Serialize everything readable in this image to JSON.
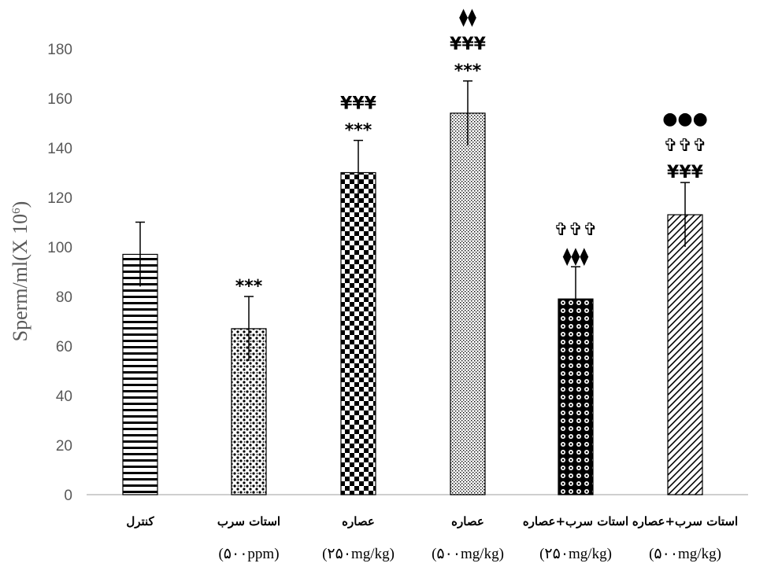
{
  "chart_data": {
    "type": "bar",
    "ylabel": "Sperm/ml(X 10",
    "ylabel_superscript": "6",
    "ylabel_close": ")",
    "ylim": [
      0,
      180
    ],
    "yticks": [
      0,
      20,
      40,
      60,
      80,
      100,
      120,
      140,
      160,
      180
    ],
    "grid": false,
    "legend": "none",
    "categories": [
      {
        "line1": "کنترل",
        "line2": ""
      },
      {
        "line1": "استات سرب",
        "line2": "(۵۰۰ppm)"
      },
      {
        "line1": "عصاره",
        "line2": "(۲۵۰mg/kg)"
      },
      {
        "line1": "عصاره",
        "line2": "(۵۰۰mg/kg)"
      },
      {
        "line1": "استات سرب+عصاره",
        "line2": "(۲۵۰mg/kg)"
      },
      {
        "line1": "استات سرب+عصاره",
        "line2": "(۵۰۰mg/kg)"
      }
    ],
    "values": [
      97,
      67,
      130,
      154,
      79,
      113
    ],
    "errors": [
      13,
      13,
      13,
      13,
      13,
      13
    ],
    "patterns": [
      "hlines",
      "dots",
      "checker",
      "fine-dots",
      "circles",
      "diagonal"
    ],
    "significance": [
      [],
      [
        "***"
      ],
      [
        "***",
        "¥¥¥"
      ],
      [
        "***",
        "¥¥¥",
        "⧫⧫"
      ],
      [
        "⧫⧫⧫",
        "✞✞✞"
      ],
      [
        "¥¥¥",
        "✞✞✞",
        "●●●"
      ]
    ]
  },
  "colors": {
    "axis": "#bfbfbf",
    "text": "#595959",
    "bar_stroke": "#000000",
    "bar_fill": "#000000"
  }
}
